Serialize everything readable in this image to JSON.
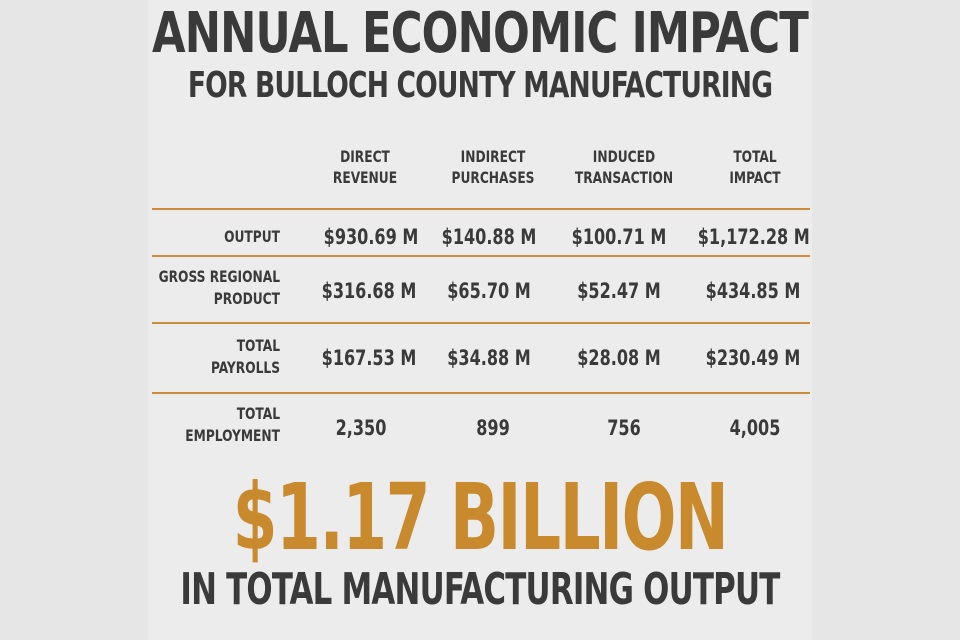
{
  "title": "ANNUAL ECONOMIC IMPACT",
  "subtitle": "FOR BULLOCH COUNTY MANUFACTURING",
  "table": {
    "columns": [
      {
        "line1": "DIRECT",
        "line2": "REVENUE"
      },
      {
        "line1": "INDIRECT",
        "line2": "PURCHASES"
      },
      {
        "line1": "INDUCED",
        "line2": "TRANSACTION"
      },
      {
        "line1": "TOTAL",
        "line2": "IMPACT"
      }
    ],
    "rows": [
      {
        "label1": "",
        "label2": "OUTPUT",
        "values": [
          "$930.69 M",
          "$140.88 M",
          "$100.71 M",
          "$1,172.28 M"
        ]
      },
      {
        "label1": "GROSS REGIONAL",
        "label2": "PRODUCT",
        "values": [
          "$316.68 M",
          "$65.70 M",
          "$52.47 M",
          "$434.85 M"
        ]
      },
      {
        "label1": "TOTAL",
        "label2": "PAYROLLS",
        "values": [
          "$167.53 M",
          "$34.88 M",
          "$28.08 M",
          "$230.49 M"
        ]
      },
      {
        "label1": "TOTAL",
        "label2": "EMPLOYMENT",
        "values": [
          "2,350",
          "899",
          "756",
          "4,005"
        ]
      }
    ]
  },
  "headline_value": "$1.17 BILLION",
  "headline_caption": "IN TOTAL MANUFACTURING OUTPUT",
  "colors": {
    "accent": "#c98a2e",
    "text": "#3a3a3a",
    "background": "#e6e6e6"
  }
}
